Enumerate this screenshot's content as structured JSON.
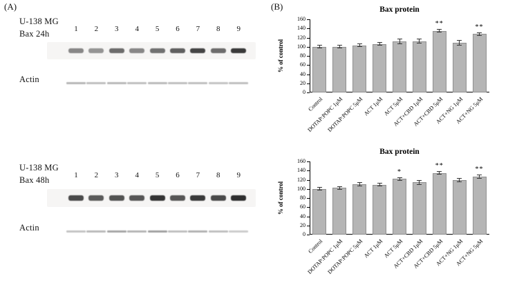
{
  "figure": {
    "panel_a_label": "(A)",
    "panel_b_label": "(B)"
  },
  "blots": [
    {
      "cell_line": "U-138 MG",
      "target": "Bax 24h",
      "loading_control": "Actin",
      "lanes": [
        "1",
        "2",
        "3",
        "4",
        "5",
        "6",
        "7",
        "8",
        "9"
      ],
      "band_intensities": [
        0.5,
        0.44,
        0.62,
        0.5,
        0.6,
        0.68,
        0.8,
        0.62,
        0.85
      ],
      "actin_intensities": [
        0.34,
        0.3,
        0.33,
        0.3,
        0.32,
        0.3,
        0.3,
        0.28,
        0.3
      ]
    },
    {
      "cell_line": "U-138 MG",
      "target": "Bax 48h",
      "loading_control": "Actin",
      "lanes": [
        "1",
        "2",
        "3",
        "4",
        "5",
        "6",
        "7",
        "8",
        "9"
      ],
      "band_intensities": [
        0.78,
        0.7,
        0.74,
        0.72,
        0.88,
        0.72,
        0.85,
        0.78,
        0.9
      ],
      "actin_intensities": [
        0.28,
        0.32,
        0.42,
        0.35,
        0.44,
        0.3,
        0.36,
        0.3,
        0.24
      ]
    }
  ],
  "chart_data": [
    {
      "type": "bar",
      "title": "Bax protein",
      "ylabel": "% of control",
      "ylim": [
        0,
        160
      ],
      "yticks": [
        0,
        20,
        40,
        60,
        80,
        100,
        120,
        140,
        160
      ],
      "grid": false,
      "legend_position": "none",
      "categories": [
        "Control",
        "DOTAP:POPC 1μM",
        "DOTAP:POPC 5μM",
        "ACT 1μM",
        "ACT 5μM",
        "ACT+CBD 1μM",
        "ACT+CBD 5μM",
        "ACT+NG 1μM",
        "ACT+NG 5μM"
      ],
      "values": [
        100,
        100,
        103,
        106,
        112,
        112,
        135,
        109,
        128
      ],
      "errors": [
        4,
        4,
        4,
        4,
        6,
        5,
        4,
        6,
        4
      ],
      "significance": [
        "",
        "",
        "",
        "",
        "",
        "",
        "**",
        "",
        "**"
      ],
      "bar_fill": "#b5b5b5",
      "bar_border": "#8f8f8f"
    },
    {
      "type": "bar",
      "title": "Bax protein",
      "ylabel": "% of control",
      "ylim": [
        0,
        160
      ],
      "yticks": [
        0,
        20,
        40,
        60,
        80,
        100,
        120,
        140,
        160
      ],
      "grid": false,
      "legend_position": "none",
      "categories": [
        "Control",
        "DOTAP:POPC 1μM",
        "DOTAP:POPC 5μM",
        "ACT 1μM",
        "ACT 5μM",
        "ACT+CBD 1μM",
        "ACT+CBD 5μM",
        "ACT+NG 1μM",
        "ACT+NG 5μM"
      ],
      "values": [
        100,
        102,
        110,
        109,
        122,
        114,
        135,
        119,
        127
      ],
      "errors": [
        4,
        4,
        5,
        4,
        4,
        5,
        4,
        5,
        4
      ],
      "significance": [
        "",
        "",
        "",
        "",
        "*",
        "",
        "**",
        "",
        "**"
      ],
      "bar_fill": "#b5b5b5",
      "bar_border": "#8f8f8f"
    }
  ]
}
